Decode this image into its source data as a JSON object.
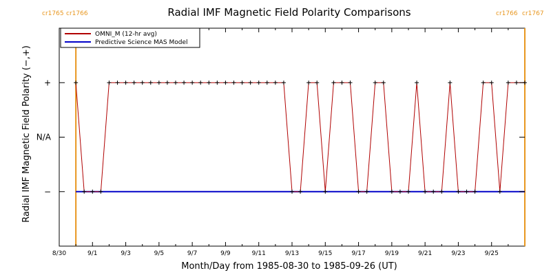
{
  "chart_data": {
    "type": "line",
    "title": "Radial IMF Magnetic Field Polarity Comparisons",
    "xlabel": "Month/Day from 1985-08-30 to 1985-09-26 (UT)",
    "ylabel": "Radial IMF Magnetic Field Polarity (−,+)",
    "x_ticks": [
      "8/30",
      "9/1",
      "9/3",
      "9/5",
      "9/7",
      "9/9",
      "9/11",
      "9/13",
      "9/15",
      "9/17",
      "9/19",
      "9/21",
      "9/23",
      "9/25"
    ],
    "y_ticks": [
      "+",
      "N/A",
      "−"
    ],
    "ylim": [
      -2,
      2
    ],
    "xlim_days": [
      0,
      28
    ],
    "carrington_markers": [
      {
        "labels": [
          "cr1765",
          "cr1766"
        ],
        "day": 1.0,
        "side": "left"
      },
      {
        "labels": [
          "cr1766",
          "cr1767"
        ],
        "day": 28.0,
        "side": "right"
      }
    ],
    "legend": {
      "placement": "top-left"
    },
    "series": [
      {
        "name": "OMNI_M (12-hr avg)",
        "color": "#b00000",
        "step_days": 0.5,
        "start_day": 1.0,
        "values": [
          1,
          -1,
          -1,
          -1,
          1,
          1,
          1,
          1,
          1,
          1,
          1,
          1,
          1,
          1,
          1,
          1,
          1,
          1,
          1,
          1,
          1,
          1,
          1,
          1,
          1,
          1,
          -1,
          -1,
          1,
          1,
          -1,
          1,
          1,
          1,
          -1,
          -1,
          1,
          1,
          -1,
          -1,
          -1,
          1,
          -1,
          -1,
          -1,
          1,
          -1,
          -1,
          -1,
          1,
          1,
          -1,
          1,
          1,
          1
        ]
      },
      {
        "name": "Predictive Science MAS Model",
        "color": "#0000c8",
        "segments": [
          {
            "from_day": 1.0,
            "to_day": 28.0,
            "value": -1
          }
        ]
      }
    ]
  }
}
